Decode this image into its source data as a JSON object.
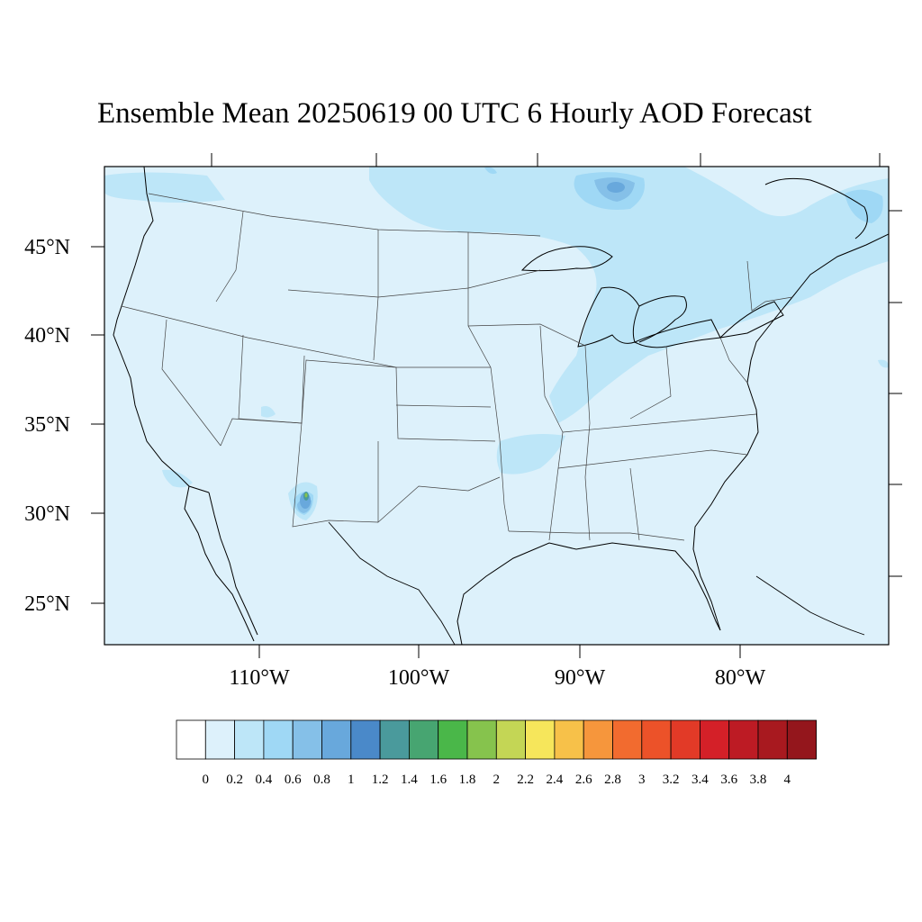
{
  "title": "Ensemble Mean 20250619 00 UTC 6 Hourly AOD Forecast",
  "map": {
    "background_color": "#ddf1fb",
    "lon_labels": [
      "110°W",
      "100°W",
      "90°W",
      "80°W"
    ],
    "lat_labels": [
      "45°N",
      "40°N",
      "35°N",
      "30°N",
      "25°N"
    ]
  },
  "colorbar": {
    "colors": [
      "#ffffff",
      "#ddf1fb",
      "#bde6f8",
      "#9fd8f5",
      "#85c0e8",
      "#68a8dc",
      "#4a89c9",
      "#4a9a9c",
      "#47a571",
      "#4ab749",
      "#86c34d",
      "#c4d655",
      "#f6e65b",
      "#f7c149",
      "#f6963c",
      "#f26b2f",
      "#ec5229",
      "#e23a27",
      "#d42028",
      "#bd1b24",
      "#a8191f",
      "#94161c"
    ],
    "labels": [
      "0",
      "0.2",
      "0.4",
      "0.6",
      "0.8",
      "1",
      "1.2",
      "1.4",
      "1.6",
      "1.8",
      "2",
      "2.2",
      "2.4",
      "2.6",
      "2.8",
      "3",
      "3.2",
      "3.4",
      "3.6",
      "3.8",
      "4"
    ]
  }
}
